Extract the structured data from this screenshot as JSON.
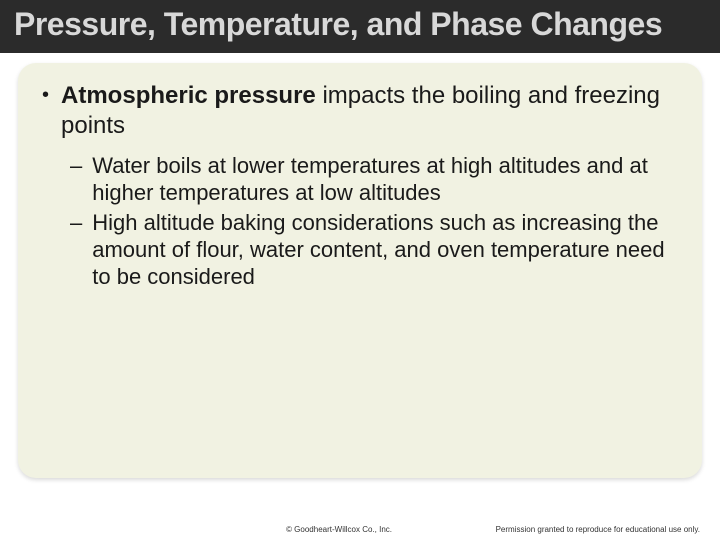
{
  "colors": {
    "header_bg": "#2b2b2b",
    "header_text": "#d8d8d8",
    "content_bg": "#f1f2e2",
    "body_text": "#1a1a1a"
  },
  "typography": {
    "title_fontsize": 32,
    "main_bullet_fontsize": 24,
    "sub_bullet_fontsize": 22,
    "footer_fontsize": 8
  },
  "header": {
    "title": "Pressure, Temperature, and Phase Changes"
  },
  "bullets": {
    "main": {
      "bold": "Atmospheric pressure",
      "rest": " impacts the boiling and freezing points"
    },
    "subs": [
      "Water boils at lower temperatures at high altitudes and at higher temperatures at low altitudes",
      "High altitude baking considerations such as increasing the amount of flour, water content, and oven temperature need to be considered"
    ]
  },
  "footer": {
    "copyright": "© Goodheart-Willcox Co., Inc.",
    "permission": "Permission granted to reproduce for educational use only."
  }
}
